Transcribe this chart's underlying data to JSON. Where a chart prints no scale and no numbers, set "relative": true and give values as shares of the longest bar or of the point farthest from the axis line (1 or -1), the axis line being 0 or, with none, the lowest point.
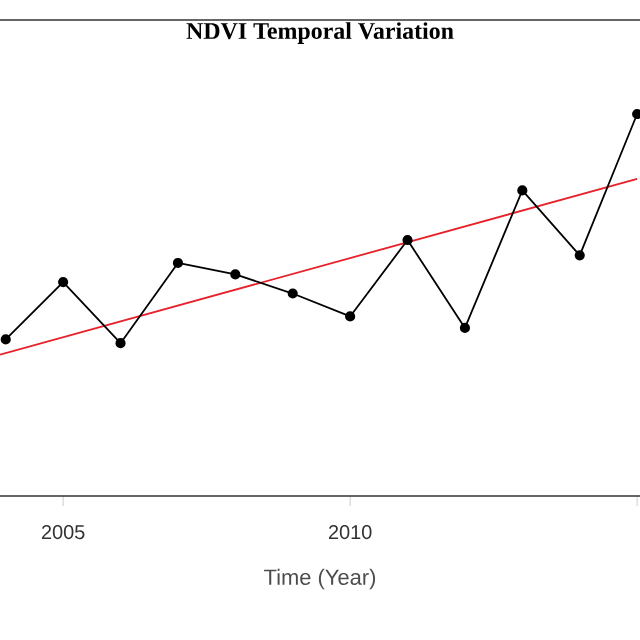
{
  "chart_data": {
    "type": "line",
    "title": "NDVI Temporal Variation",
    "xlabel": "Time (Year)",
    "relative": true,
    "xlim": [
      2003.9,
      2015.05
    ],
    "xticks": [
      2005,
      2010,
      {
        "value": 2015,
        "label": null
      }
    ],
    "series": [
      {
        "color": "#000000",
        "marker": "circle",
        "x": [
          2004,
          2005,
          2006,
          2007,
          2008,
          2009,
          2010,
          2011,
          2012,
          2013,
          2014,
          2015
        ],
        "values": [
          0.41,
          0.56,
          0.4,
          0.61,
          0.58,
          0.53,
          0.47,
          0.67,
          0.44,
          0.8,
          0.63,
          1.0
        ]
      },
      {
        "type": "line",
        "color": "#e8202a",
        "marker": "none",
        "x": [
          2003.9,
          2015.0
        ],
        "values": [
          0.37,
          0.83
        ]
      }
    ]
  }
}
